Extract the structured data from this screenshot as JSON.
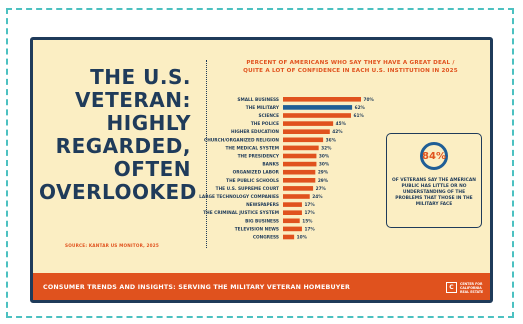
{
  "headline": [
    "THE U.S.",
    "VETERAN:",
    "HIGHLY",
    "REGARDED,",
    "OFTEN",
    "OVERLOOKED"
  ],
  "source": "SOURCE: KANTAR US MONITOR, 2025",
  "stat": {
    "value": "84%",
    "description": "OF VETERANS SAY THE AMERICAN PUBLIC HAS LITTLE OR NO UNDERSTANDING OF THE PROBLEMS THAT THOSE IN THE MILITARY FACE"
  },
  "footer": {
    "text": "CONSUMER TRENDS AND INSIGHTS: SERVING THE MILITARY VETERAN HOMEBUYER",
    "logo_mark": "C",
    "logo_lines": [
      "CENTER FOR",
      "CALIFORNIA",
      "REAL ESTATE"
    ]
  },
  "colors": {
    "bar": "#e0521e",
    "highlight": "#1f5e96",
    "text": "#1f3b5a",
    "background": "#fbeec3"
  },
  "chart_data": {
    "type": "bar",
    "orientation": "horizontal",
    "title": [
      "PERCENT OF AMERICANS WHO SAY THEY HAVE A GREAT DEAL /",
      "QUITE A LOT OF CONFIDENCE IN EACH U.S. INSTITUTION IN 2025"
    ],
    "categories": [
      "SMALL BUSINESS",
      "THE MILITARY",
      "SCIENCE",
      "THE POLICE",
      "HIGHER EDUCATION",
      "CHURCH/ORGANIZED RELIGION",
      "THE MEDICAL SYSTEM",
      "THE PRESIDENCY",
      "BANKS",
      "ORGANIZED LABOR",
      "THE PUBLIC SCHOOLS",
      "THE U.S. SUPREME COURT",
      "LARGE TECHNOLOGY COMPANIES",
      "NEWSPAPERS",
      "THE CRIMINAL JUSTICE SYSTEM",
      "BIG BUSINESS",
      "TELEVISION NEWS",
      "CONGRESS"
    ],
    "values": [
      70,
      62,
      61,
      45,
      42,
      36,
      32,
      30,
      30,
      29,
      29,
      27,
      24,
      17,
      17,
      15,
      17,
      10
    ],
    "value_labels": [
      "70%",
      "62%",
      "61%",
      "45%",
      "42%",
      "36%",
      "32%",
      "30%",
      "30%",
      "29%",
      "29%",
      "27%",
      "24%",
      "17%",
      "17%",
      "15%",
      "17%",
      "10%"
    ],
    "highlight_category": "THE MILITARY",
    "xlim": [
      0,
      70
    ],
    "grid": false,
    "legend": "none"
  }
}
